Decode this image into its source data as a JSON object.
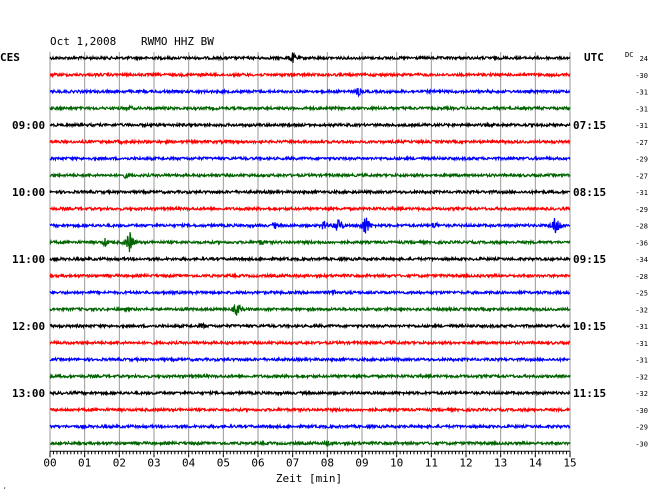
{
  "header": {
    "date": "Oct 1,2008",
    "station": "RWMO HHZ BW",
    "left_zone": "CES",
    "right_zone": "UTC",
    "dc_label": "DC"
  },
  "chart_data": {
    "type": "line",
    "title": "Oct 1,2008   RWMO HHZ BW",
    "xlabel": "Zeit [min]",
    "xlim": [
      0,
      15
    ],
    "x_ticks": [
      "00",
      "01",
      "02",
      "03",
      "04",
      "05",
      "06",
      "07",
      "08",
      "09",
      "10",
      "11",
      "12",
      "13",
      "14",
      "15"
    ],
    "grid": true,
    "rows_per_hour": 4,
    "left_hour_labels": [
      {
        "row": 4,
        "label": "09:00"
      },
      {
        "row": 8,
        "label": "10:00"
      },
      {
        "row": 12,
        "label": "11:00"
      },
      {
        "row": 16,
        "label": "12:00"
      },
      {
        "row": 20,
        "label": "13:00"
      }
    ],
    "right_hour_labels": [
      {
        "row": 4,
        "label": "07:15"
      },
      {
        "row": 8,
        "label": "08:15"
      },
      {
        "row": 12,
        "label": "09:15"
      },
      {
        "row": 16,
        "label": "10:15"
      },
      {
        "row": 20,
        "label": "11:15"
      }
    ],
    "dc_offsets": [
      "24",
      "-30",
      "-31",
      "-31",
      "-31",
      "-27",
      "-29",
      "-27",
      "-31",
      "-29",
      "-28",
      "-36",
      "-34",
      "-28",
      "-25",
      "-32",
      "-31",
      "-31",
      "-31",
      "-32",
      "-32",
      "-30",
      "-29",
      "-30"
    ],
    "trace_colors": [
      "#000000",
      "#ff0000",
      "#0000ff",
      "#006400"
    ],
    "events": [
      {
        "row": 0,
        "minute": 7.0,
        "amplitude": 6
      },
      {
        "row": 2,
        "minute": 8.9,
        "amplitude": 5
      },
      {
        "row": 3,
        "minute": 2.3,
        "amplitude": 3
      },
      {
        "row": 5,
        "minute": 2.0,
        "amplitude": 3
      },
      {
        "row": 7,
        "minute": 2.2,
        "amplitude": 4
      },
      {
        "row": 10,
        "minute": 6.5,
        "amplitude": 4
      },
      {
        "row": 10,
        "minute": 7.9,
        "amplitude": 6
      },
      {
        "row": 10,
        "minute": 8.3,
        "amplitude": 10
      },
      {
        "row": 10,
        "minute": 9.1,
        "amplitude": 12
      },
      {
        "row": 10,
        "minute": 11.1,
        "amplitude": 5
      },
      {
        "row": 10,
        "minute": 14.6,
        "amplitude": 12
      },
      {
        "row": 11,
        "minute": 1.6,
        "amplitude": 5
      },
      {
        "row": 11,
        "minute": 2.3,
        "amplitude": 12
      },
      {
        "row": 11,
        "minute": 6.1,
        "amplitude": 4
      },
      {
        "row": 14,
        "minute": 8.2,
        "amplitude": 4
      },
      {
        "row": 15,
        "minute": 5.4,
        "amplitude": 8
      },
      {
        "row": 16,
        "minute": 4.4,
        "amplitude": 4
      },
      {
        "row": 18,
        "minute": 3.3,
        "amplitude": 2
      },
      {
        "row": 23,
        "minute": 8.0,
        "amplitude": 4
      }
    ]
  }
}
